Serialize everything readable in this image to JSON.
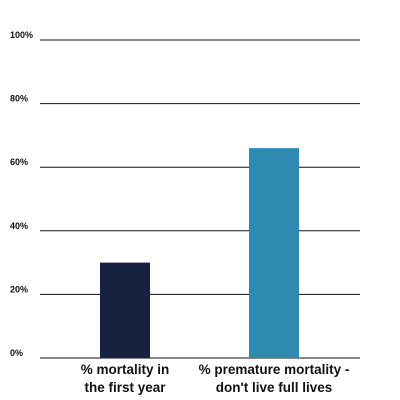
{
  "chart_data": {
    "type": "bar",
    "categories": [
      "% mortality in the first year",
      "% premature mortality - don't live full lives"
    ],
    "values": [
      30,
      66
    ],
    "colors": [
      "#172240",
      "#2e8ab0"
    ],
    "ylim": [
      0,
      100
    ],
    "yticks": [
      {
        "value": 0,
        "label": "0%"
      },
      {
        "value": 20,
        "label": "20%"
      },
      {
        "value": 40,
        "label": "40%"
      },
      {
        "value": 60,
        "label": "60%"
      },
      {
        "value": 80,
        "label": "80%"
      },
      {
        "value": 100,
        "label": "100%"
      }
    ],
    "grid": true
  }
}
